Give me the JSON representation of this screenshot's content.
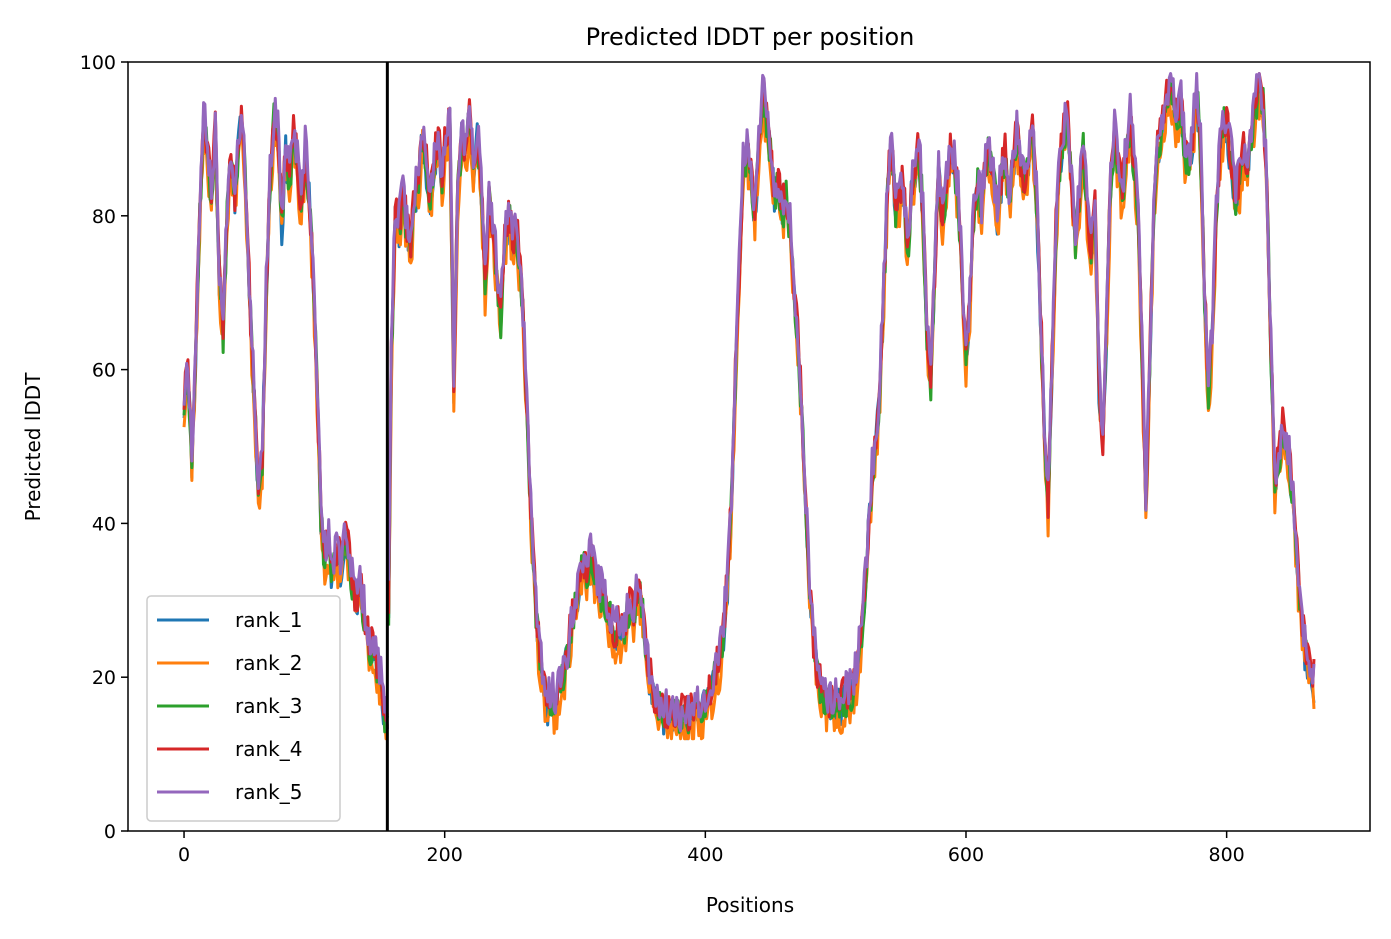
{
  "chart_data": {
    "type": "line",
    "title": "Predicted lDDT per position",
    "xlabel": "Positions",
    "ylabel": "Predicted lDDT",
    "xlim": [
      -43,
      910
    ],
    "ylim": [
      0,
      100
    ],
    "xticks": [
      0,
      200,
      400,
      600,
      800
    ],
    "yticks": [
      0,
      20,
      40,
      60,
      80,
      100
    ],
    "grid": false,
    "legend_position": "lower-left",
    "vline_x": 156,
    "shape_points": [
      [
        0,
        55
      ],
      [
        3,
        60
      ],
      [
        6,
        48
      ],
      [
        9,
        62
      ],
      [
        12,
        80
      ],
      [
        15,
        92
      ],
      [
        18,
        88
      ],
      [
        21,
        82
      ],
      [
        24,
        90
      ],
      [
        27,
        72
      ],
      [
        30,
        64
      ],
      [
        33,
        80
      ],
      [
        36,
        88
      ],
      [
        39,
        82
      ],
      [
        42,
        90
      ],
      [
        45,
        92
      ],
      [
        48,
        80
      ],
      [
        51,
        66
      ],
      [
        54,
        56
      ],
      [
        57,
        44
      ],
      [
        60,
        48
      ],
      [
        63,
        70
      ],
      [
        66,
        84
      ],
      [
        69,
        92
      ],
      [
        72,
        90
      ],
      [
        75,
        78
      ],
      [
        78,
        88
      ],
      [
        81,
        84
      ],
      [
        84,
        90
      ],
      [
        87,
        86
      ],
      [
        90,
        80
      ],
      [
        93,
        88
      ],
      [
        96,
        82
      ],
      [
        99,
        72
      ],
      [
        102,
        58
      ],
      [
        105,
        40
      ],
      [
        108,
        35
      ],
      [
        111,
        37
      ],
      [
        114,
        32
      ],
      [
        117,
        36
      ],
      [
        120,
        34
      ],
      [
        123,
        38
      ],
      [
        126,
        36
      ],
      [
        129,
        32
      ],
      [
        132,
        29
      ],
      [
        135,
        32
      ],
      [
        138,
        28
      ],
      [
        141,
        25
      ],
      [
        144,
        23
      ],
      [
        147,
        22
      ],
      [
        150,
        20
      ],
      [
        153,
        16
      ],
      [
        156,
        13
      ],
      [
        159,
        60
      ],
      [
        162,
        80
      ],
      [
        165,
        78
      ],
      [
        168,
        82
      ],
      [
        171,
        78
      ],
      [
        174,
        76
      ],
      [
        177,
        82
      ],
      [
        180,
        84
      ],
      [
        183,
        90
      ],
      [
        186,
        86
      ],
      [
        189,
        82
      ],
      [
        192,
        86
      ],
      [
        195,
        90
      ],
      [
        198,
        84
      ],
      [
        201,
        90
      ],
      [
        204,
        92
      ],
      [
        207,
        58
      ],
      [
        210,
        82
      ],
      [
        213,
        90
      ],
      [
        216,
        88
      ],
      [
        219,
        92
      ],
      [
        222,
        86
      ],
      [
        225,
        90
      ],
      [
        228,
        84
      ],
      [
        231,
        70
      ],
      [
        234,
        82
      ],
      [
        237,
        78
      ],
      [
        240,
        72
      ],
      [
        243,
        66
      ],
      [
        246,
        76
      ],
      [
        249,
        80
      ],
      [
        252,
        76
      ],
      [
        255,
        78
      ],
      [
        258,
        72
      ],
      [
        261,
        64
      ],
      [
        264,
        50
      ],
      [
        267,
        38
      ],
      [
        270,
        28
      ],
      [
        273,
        22
      ],
      [
        276,
        18
      ],
      [
        279,
        16
      ],
      [
        282,
        17
      ],
      [
        285,
        16
      ],
      [
        288,
        18
      ],
      [
        291,
        20
      ],
      [
        294,
        22
      ],
      [
        297,
        26
      ],
      [
        300,
        29
      ],
      [
        303,
        32
      ],
      [
        306,
        34
      ],
      [
        309,
        33
      ],
      [
        312,
        35
      ],
      [
        315,
        33
      ],
      [
        318,
        31
      ],
      [
        321,
        30
      ],
      [
        324,
        29
      ],
      [
        327,
        27
      ],
      [
        330,
        25
      ],
      [
        333,
        26
      ],
      [
        336,
        25
      ],
      [
        339,
        27
      ],
      [
        342,
        29
      ],
      [
        345,
        27
      ],
      [
        348,
        31
      ],
      [
        351,
        30
      ],
      [
        354,
        24
      ],
      [
        357,
        20
      ],
      [
        360,
        17
      ],
      [
        363,
        16
      ],
      [
        366,
        15
      ],
      [
        369,
        15
      ],
      [
        372,
        14
      ],
      [
        375,
        14
      ],
      [
        378,
        15
      ],
      [
        381,
        14
      ],
      [
        384,
        15
      ],
      [
        387,
        14
      ],
      [
        390,
        15
      ],
      [
        393,
        16
      ],
      [
        396,
        15
      ],
      [
        399,
        16
      ],
      [
        402,
        17
      ],
      [
        405,
        18
      ],
      [
        408,
        20
      ],
      [
        411,
        22
      ],
      [
        414,
        26
      ],
      [
        417,
        32
      ],
      [
        420,
        42
      ],
      [
        423,
        58
      ],
      [
        426,
        72
      ],
      [
        429,
        86
      ],
      [
        432,
        88
      ],
      [
        435,
        84
      ],
      [
        438,
        80
      ],
      [
        441,
        88
      ],
      [
        444,
        96
      ],
      [
        447,
        92
      ],
      [
        450,
        88
      ],
      [
        453,
        82
      ],
      [
        456,
        84
      ],
      [
        459,
        80
      ],
      [
        462,
        82
      ],
      [
        465,
        78
      ],
      [
        468,
        70
      ],
      [
        471,
        64
      ],
      [
        474,
        54
      ],
      [
        477,
        42
      ],
      [
        480,
        30
      ],
      [
        483,
        24
      ],
      [
        486,
        20
      ],
      [
        489,
        18
      ],
      [
        492,
        17
      ],
      [
        495,
        16
      ],
      [
        498,
        16
      ],
      [
        501,
        16
      ],
      [
        504,
        16
      ],
      [
        507,
        17
      ],
      [
        510,
        17
      ],
      [
        513,
        18
      ],
      [
        516,
        20
      ],
      [
        519,
        24
      ],
      [
        522,
        30
      ],
      [
        525,
        38
      ],
      [
        528,
        46
      ],
      [
        531,
        50
      ],
      [
        534,
        58
      ],
      [
        537,
        70
      ],
      [
        540,
        84
      ],
      [
        543,
        88
      ],
      [
        546,
        80
      ],
      [
        549,
        82
      ],
      [
        552,
        84
      ],
      [
        555,
        74
      ],
      [
        558,
        82
      ],
      [
        561,
        86
      ],
      [
        564,
        88
      ],
      [
        567,
        80
      ],
      [
        570,
        64
      ],
      [
        573,
        58
      ],
      [
        576,
        72
      ],
      [
        579,
        86
      ],
      [
        582,
        78
      ],
      [
        585,
        84
      ],
      [
        588,
        88
      ],
      [
        591,
        86
      ],
      [
        594,
        82
      ],
      [
        597,
        72
      ],
      [
        600,
        60
      ],
      [
        603,
        68
      ],
      [
        606,
        80
      ],
      [
        609,
        84
      ],
      [
        612,
        80
      ],
      [
        615,
        86
      ],
      [
        618,
        88
      ],
      [
        621,
        84
      ],
      [
        624,
        80
      ],
      [
        627,
        84
      ],
      [
        630,
        88
      ],
      [
        633,
        82
      ],
      [
        636,
        86
      ],
      [
        639,
        90
      ],
      [
        642,
        86
      ],
      [
        645,
        84
      ],
      [
        648,
        86
      ],
      [
        651,
        90
      ],
      [
        654,
        82
      ],
      [
        657,
        68
      ],
      [
        660,
        52
      ],
      [
        663,
        42
      ],
      [
        666,
        60
      ],
      [
        669,
        78
      ],
      [
        672,
        86
      ],
      [
        675,
        90
      ],
      [
        678,
        92
      ],
      [
        681,
        84
      ],
      [
        684,
        76
      ],
      [
        687,
        82
      ],
      [
        690,
        88
      ],
      [
        693,
        80
      ],
      [
        696,
        74
      ],
      [
        699,
        80
      ],
      [
        702,
        58
      ],
      [
        705,
        50
      ],
      [
        708,
        66
      ],
      [
        711,
        84
      ],
      [
        714,
        90
      ],
      [
        717,
        86
      ],
      [
        720,
        82
      ],
      [
        723,
        88
      ],
      [
        726,
        92
      ],
      [
        729,
        86
      ],
      [
        732,
        80
      ],
      [
        735,
        62
      ],
      [
        738,
        42
      ],
      [
        741,
        60
      ],
      [
        744,
        80
      ],
      [
        747,
        88
      ],
      [
        750,
        90
      ],
      [
        753,
        94
      ],
      [
        756,
        96
      ],
      [
        759,
        94
      ],
      [
        762,
        92
      ],
      [
        765,
        94
      ],
      [
        768,
        88
      ],
      [
        771,
        86
      ],
      [
        774,
        90
      ],
      [
        777,
        96
      ],
      [
        780,
        88
      ],
      [
        783,
        70
      ],
      [
        786,
        56
      ],
      [
        789,
        64
      ],
      [
        792,
        80
      ],
      [
        795,
        88
      ],
      [
        798,
        92
      ],
      [
        801,
        90
      ],
      [
        804,
        86
      ],
      [
        807,
        82
      ],
      [
        810,
        84
      ],
      [
        813,
        88
      ],
      [
        816,
        86
      ],
      [
        819,
        90
      ],
      [
        822,
        94
      ],
      [
        825,
        96
      ],
      [
        828,
        94
      ],
      [
        831,
        82
      ],
      [
        834,
        62
      ],
      [
        837,
        44
      ],
      [
        840,
        48
      ],
      [
        843,
        52
      ],
      [
        846,
        50
      ],
      [
        849,
        46
      ],
      [
        852,
        40
      ],
      [
        855,
        32
      ],
      [
        858,
        26
      ],
      [
        861,
        22
      ],
      [
        864,
        21
      ],
      [
        867,
        19
      ]
    ],
    "series": [
      {
        "name": "rank_1",
        "color": "#1f77b4",
        "offset": 0.0,
        "seed": 11
      },
      {
        "name": "rank_2",
        "color": "#ff7f0e",
        "offset": -1.2,
        "seed": 23
      },
      {
        "name": "rank_3",
        "color": "#2ca02c",
        "offset": 0.3,
        "seed": 37
      },
      {
        "name": "rank_4",
        "color": "#d62728",
        "offset": 1.0,
        "seed": 51
      },
      {
        "name": "rank_5",
        "color": "#9467bd",
        "offset": 1.5,
        "seed": 67
      }
    ]
  }
}
